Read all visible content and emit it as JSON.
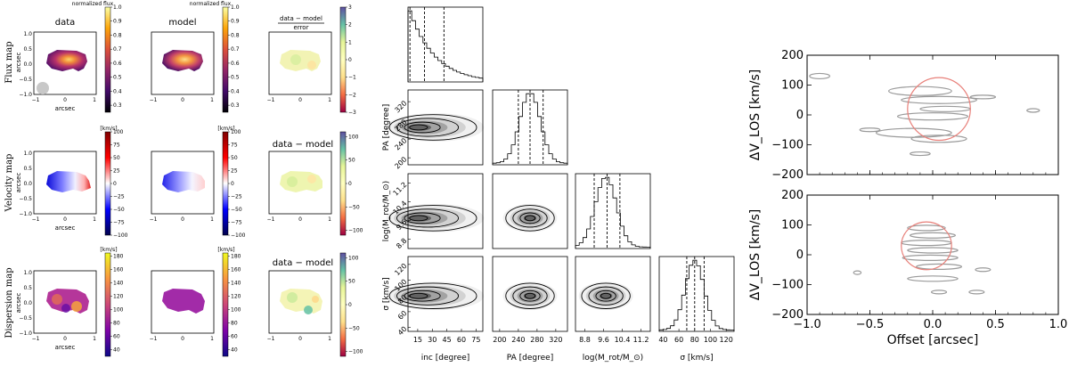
{
  "chart_data": {
    "type": "figure",
    "maps": {
      "col_titles": [
        "data",
        "model",
        "data − model"
      ],
      "row_titles": [
        "Flux map",
        "Velocity map",
        "Dispersion map"
      ],
      "axis_label": "arcsec",
      "x_ticks": [
        "−1",
        "0",
        "1"
      ],
      "y_ticks": [
        "1.0",
        "0.5",
        "0.0",
        "−0.5",
        "−1.0"
      ],
      "resid_flux_label_top": "data − model",
      "resid_flux_label_bottom": "error",
      "colorbars": {
        "flux": {
          "label": "normalized flux",
          "ticks": [
            "1.0",
            "0.9",
            "0.8",
            "0.7",
            "0.6",
            "0.5",
            "0.4",
            "0.3"
          ],
          "range": [
            0.25,
            1.0
          ],
          "colors": [
            "#000004",
            "#420a68",
            "#932667",
            "#dd513a",
            "#fca50a",
            "#fcffa4"
          ]
        },
        "flux_resid": {
          "label": "",
          "ticks": [
            "3",
            "2",
            "1",
            "0",
            "−1",
            "−2",
            "−3"
          ],
          "range": [
            -3,
            3
          ],
          "colors": [
            "#9e0142",
            "#f46d43",
            "#fee08b",
            "#ffffbf",
            "#e6f598",
            "#66c2a5",
            "#5e4fa2"
          ]
        },
        "velocity": {
          "label": "[km/s]",
          "ticks": [
            "100",
            "75",
            "50",
            "25",
            "0",
            "−25",
            "−50",
            "−75",
            "−100"
          ],
          "range": [
            -100,
            100
          ],
          "colors": [
            "#00004c",
            "#0000ff",
            "#ffffff",
            "#ff0000",
            "#7f0000"
          ]
        },
        "velocity_resid": {
          "label": "",
          "ticks": [
            "100",
            "50",
            "0",
            "−50",
            "−100"
          ],
          "range": [
            -110,
            110
          ],
          "colors": [
            "#9e0142",
            "#f46d43",
            "#fee08b",
            "#ffffbf",
            "#e6f598",
            "#66c2a5",
            "#5e4fa2"
          ]
        },
        "dispersion": {
          "label": "[km/s]",
          "ticks": [
            "180",
            "160",
            "140",
            "120",
            "100",
            "80",
            "60",
            "40"
          ],
          "range": [
            30,
            185
          ],
          "colors": [
            "#0d0887",
            "#7e03a8",
            "#cc4778",
            "#f89540",
            "#f0f921"
          ]
        },
        "dispersion_resid": {
          "label": "",
          "ticks": [
            "100",
            "50",
            "0",
            "−50",
            "−100"
          ],
          "range": [
            -110,
            110
          ],
          "colors": [
            "#9e0142",
            "#f46d43",
            "#fee08b",
            "#ffffbf",
            "#e6f598",
            "#66c2a5",
            "#5e4fa2"
          ]
        }
      }
    },
    "corner": {
      "params": [
        "inc [degree]",
        "PA [degree]",
        "log(M_rot/M_⊙)",
        "σ [km/s]"
      ],
      "y_labels": [
        "",
        "PA [degree]",
        "log(M_rot/M_⊙)",
        "σ [km/s]"
      ],
      "ticks": [
        [
          "15",
          "30",
          "45",
          "60",
          "75"
        ],
        [
          "200",
          "240",
          "280",
          "320"
        ],
        [
          "8.8",
          "9.6",
          "10.4",
          "11.2"
        ],
        [
          "40",
          "60",
          "80",
          "100",
          "120"
        ]
      ],
      "tick_values": [
        [
          15,
          30,
          45,
          60,
          75
        ],
        [
          200,
          240,
          280,
          320
        ],
        [
          8.8,
          9.6,
          10.4,
          11.2
        ],
        [
          40,
          60,
          80,
          100,
          120
        ]
      ],
      "ranges": [
        [
          5,
          82
        ],
        [
          185,
          345
        ],
        [
          8.4,
          11.6
        ],
        [
          35,
          130
        ]
      ],
      "peaks": [
        5,
        265,
        9.7,
        80
      ],
      "quantiles": [
        [
          7,
          22,
          42
        ],
        [
          240,
          265,
          293
        ],
        [
          9.2,
          9.75,
          10.3
        ],
        [
          70,
          80,
          92
        ]
      ]
    },
    "pv": {
      "xlabel": "Offset [arcsec]",
      "ylabel": "ΔV_LOS [km/s]",
      "x_ticks": [
        "−1.0",
        "−0.5",
        "0.0",
        "0.5",
        "1.0"
      ],
      "y_ticks": [
        "200",
        "100",
        "0",
        "−100",
        "−200"
      ],
      "x_range": [
        -1.0,
        1.0
      ],
      "y_range": [
        -200,
        200
      ],
      "panels": [
        {
          "ring_center": [
            0.05,
            20
          ],
          "ring_radius": [
            0.25,
            105
          ]
        },
        {
          "ring_center": [
            -0.05,
            30
          ],
          "ring_radius": [
            0.2,
            80
          ]
        }
      ]
    }
  }
}
